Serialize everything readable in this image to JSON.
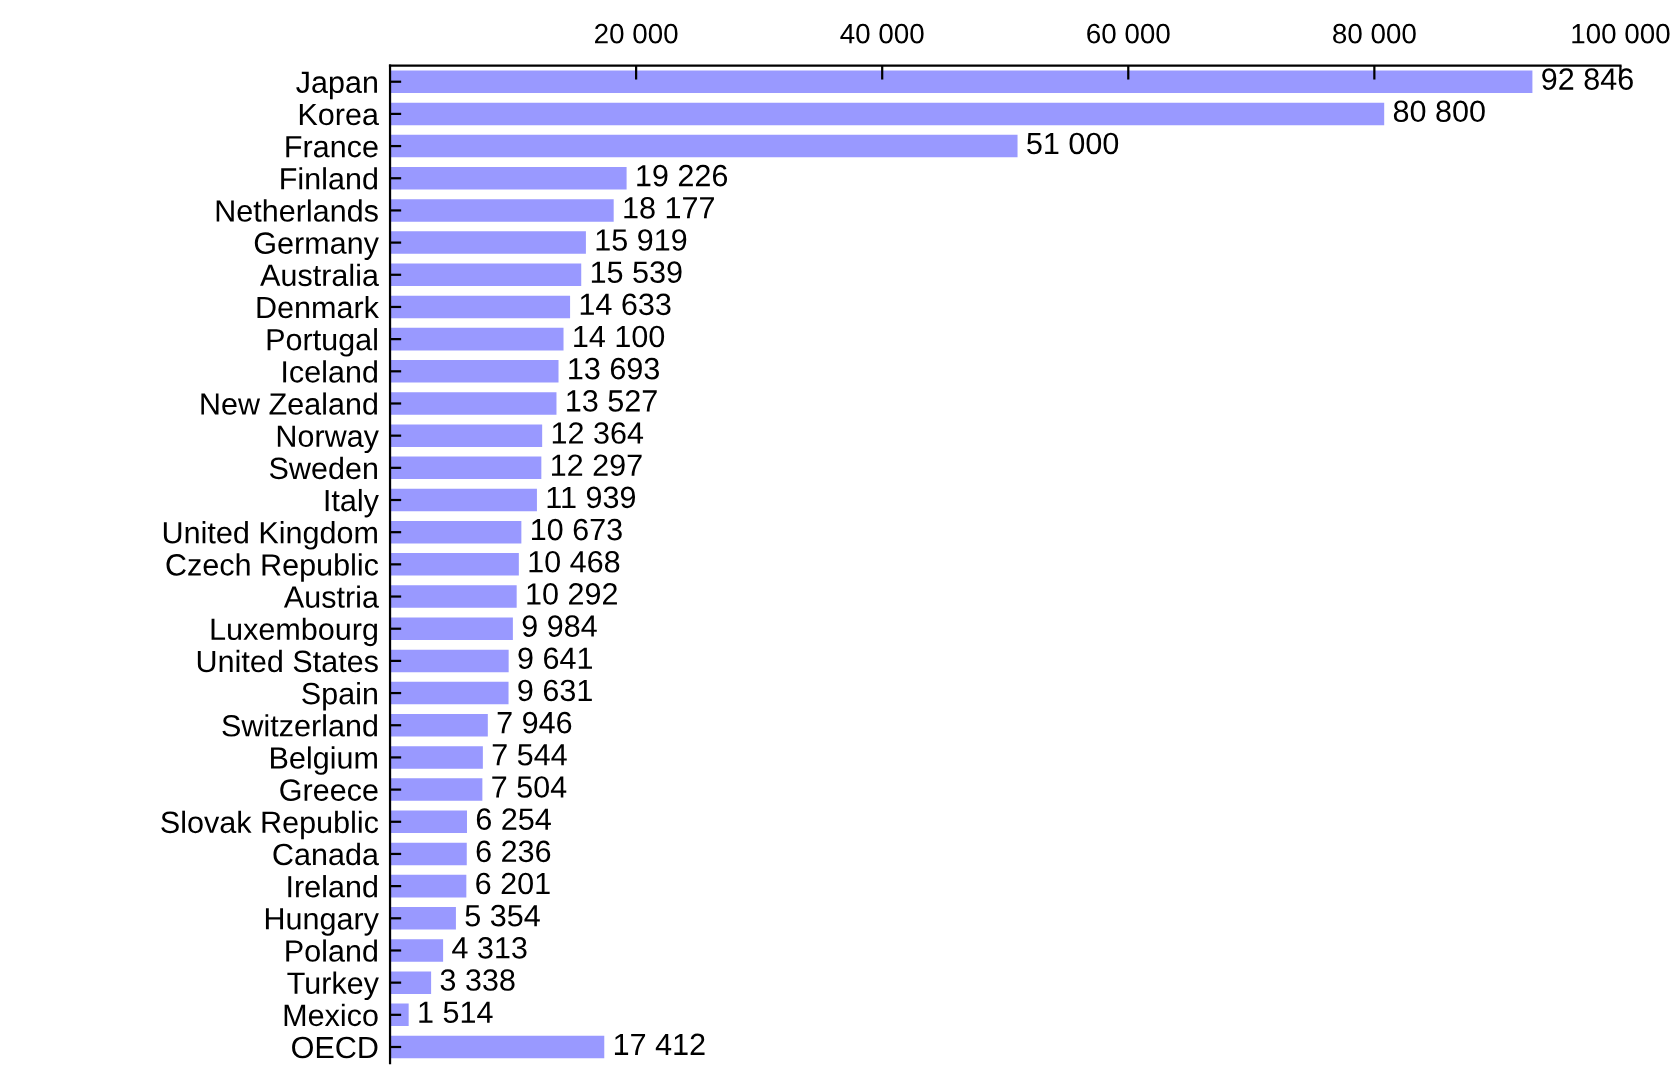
{
  "chart_data": {
    "type": "bar",
    "orientation": "horizontal",
    "categories": [
      "Japan",
      "Korea",
      "France",
      "Finland",
      "Netherlands",
      "Germany",
      "Australia",
      "Denmark",
      "Portugal",
      "Iceland",
      "New Zealand",
      "Norway",
      "Sweden",
      "Italy",
      "United Kingdom",
      "Czech Republic",
      "Austria",
      "Luxembourg",
      "United States",
      "Spain",
      "Switzerland",
      "Belgium",
      "Greece",
      "Slovak Republic",
      "Canada",
      "Ireland",
      "Hungary",
      "Poland",
      "Turkey",
      "Mexico",
      "OECD"
    ],
    "values": [
      92846,
      80800,
      51000,
      19226,
      18177,
      15919,
      15539,
      14633,
      14100,
      13693,
      13527,
      12364,
      12297,
      11939,
      10673,
      10468,
      10292,
      9984,
      9641,
      9631,
      7946,
      7544,
      7504,
      6254,
      6236,
      6201,
      5354,
      4313,
      3338,
      1514,
      17412
    ],
    "value_labels": [
      "92 846",
      "80 800",
      "51 000",
      "19 226",
      "18 177",
      "15 919",
      "15 539",
      "14 633",
      "14 100",
      "13 693",
      "13 527",
      "12 364",
      "12 297",
      "11 939",
      "10 673",
      "10 468",
      "10 292",
      "9 984",
      "9 641",
      "9 631",
      "7 946",
      "7 544",
      "7 504",
      "6 254",
      "6 236",
      "6 201",
      "5 354",
      "4 313",
      "3 338",
      "1 514",
      "17 412"
    ],
    "color": "#9999ff",
    "xlim": [
      0,
      100000
    ],
    "xticks": [
      {
        "value": 20000,
        "label": "20 000"
      },
      {
        "value": 40000,
        "label": "40 000"
      },
      {
        "value": 60000,
        "label": "60 000"
      },
      {
        "value": 80000,
        "label": "80 000"
      },
      {
        "value": 100000,
        "label": "100 000"
      }
    ],
    "grid": false,
    "legend": false
  }
}
